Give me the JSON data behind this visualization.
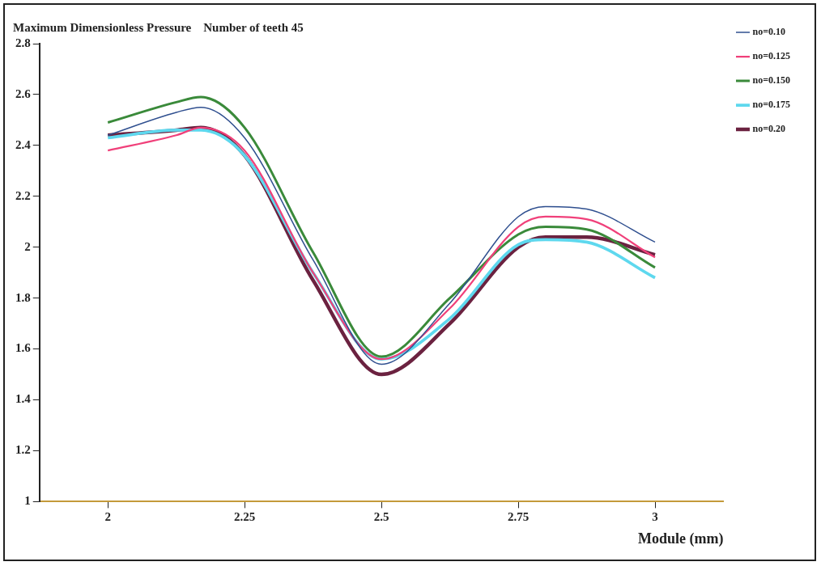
{
  "chart_data": {
    "type": "line",
    "title": "Maximum Dimensionless Pressure    Number of teeth 45",
    "xlabel": "Module (mm)",
    "x": [
      2,
      2.125,
      2.17,
      2.25,
      2.375,
      2.5,
      2.625,
      2.75,
      2.8,
      2.875,
      3
    ],
    "series": [
      {
        "name": "no=0.10",
        "color": "#2f4f8f",
        "values": [
          2.44,
          2.53,
          2.55,
          2.43,
          1.95,
          1.54,
          1.78,
          2.12,
          2.16,
          2.15,
          2.02
        ]
      },
      {
        "name": "no=0.125",
        "color": "#f0407a",
        "values": [
          2.38,
          2.44,
          2.47,
          2.38,
          1.9,
          1.56,
          1.76,
          2.08,
          2.12,
          2.11,
          1.96
        ]
      },
      {
        "name": "no=0.150",
        "color": "#3a8a3a",
        "values": [
          2.49,
          2.57,
          2.59,
          2.47,
          1.98,
          1.57,
          1.8,
          2.05,
          2.08,
          2.07,
          1.92
        ]
      },
      {
        "name": "no=0.175",
        "color": "#5ed8ee",
        "values": [
          2.43,
          2.46,
          2.46,
          2.36,
          1.9,
          1.56,
          1.72,
          2.01,
          2.03,
          2.02,
          1.88
        ]
      },
      {
        "name": "no=0.20",
        "color": "#6b2240",
        "values": [
          2.44,
          2.46,
          2.47,
          2.36,
          1.87,
          1.5,
          1.7,
          2,
          2.04,
          2.04,
          1.97
        ]
      }
    ],
    "xlim": [
      1.875,
      3.125
    ],
    "xticks": [
      2,
      2.25,
      2.5,
      2.75,
      3
    ],
    "ylim": [
      1,
      2.8
    ],
    "yticks": [
      1,
      1.2,
      1.4,
      1.6,
      1.8,
      2,
      2.2,
      2.4,
      2.6,
      2.8
    ],
    "grid": false,
    "legend": "right",
    "marker": "none",
    "line_style": "solid"
  }
}
